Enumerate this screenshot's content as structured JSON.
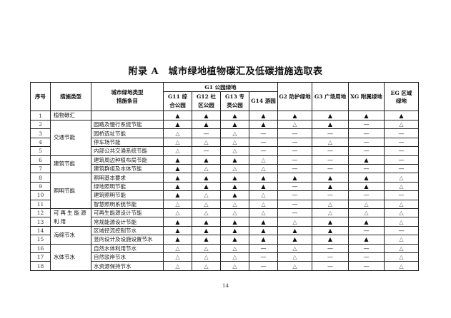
{
  "title": "附录 A　城市绿地植物碳汇及低碳措施选取表",
  "page_number": "14",
  "legend_symbols": {
    "F": "▲",
    "O": "△",
    "N": "—"
  },
  "headers": {
    "index": "序号",
    "type": "措施类型",
    "item": "城市绿地类型\n措施条目",
    "group_g1": "G1 公园绿地",
    "columns": [
      "G11 综合公园",
      "G12 社区公园",
      "G13 专类公园",
      "G14 游园",
      "G2 防护绿地",
      "G3 广场用地",
      "XG 附属绿地",
      "EG 区域绿地"
    ]
  },
  "types": [
    {
      "label": "植物碳汇",
      "rows": 1
    },
    {
      "label": "交通节能",
      "rows": 4
    },
    {
      "label": "建筑节能",
      "rows": 2
    },
    {
      "label": "照明节能",
      "rows": 4
    },
    {
      "label": "可再生能源利用",
      "rows": 2
    },
    {
      "label": "海绵节水",
      "rows": 2
    },
    {
      "label": "水体节水",
      "rows": 3
    }
  ],
  "rows": [
    {
      "no": "1",
      "item": "",
      "marks": "FFFFFFFF"
    },
    {
      "no": "2",
      "item": "园路及慢行系统节能",
      "marks": "FFFFOFNO"
    },
    {
      "no": "3",
      "item": "园桥选址节能",
      "marks": "ONONNNNN"
    },
    {
      "no": "4",
      "item": "停车场节能",
      "marks": "OOONNONN"
    },
    {
      "no": "5",
      "item": "内部公共交通系统节能",
      "marks": "ONONNNNN"
    },
    {
      "no": "6",
      "item": "建筑周边种植布局节能",
      "marks": "FFFONNFN"
    },
    {
      "no": "7",
      "item": "建筑群组及本体节能",
      "marks": "FOOONNNN"
    },
    {
      "no": "8",
      "item": "照明基本要求",
      "marks": "FFFFFFFO"
    },
    {
      "no": "9",
      "item": "绿地照明节能",
      "marks": "FFFFNFFO"
    },
    {
      "no": "10",
      "item": "建筑照明节能",
      "marks": "FOFONNNN"
    },
    {
      "no": "11",
      "item": "智慧照明系统节能",
      "marks": "OOOONOOO"
    },
    {
      "no": "12",
      "item": "可再生能源设计节能",
      "marks": "OOOONOOO"
    },
    {
      "no": "13",
      "item": "常规能源设计节能",
      "marks": "FFFFOFFO"
    },
    {
      "no": "14",
      "item": "区域径流控制节水",
      "marks": "FFFFFFNN"
    },
    {
      "no": "15",
      "item": "竖向设计及设施设置节水",
      "marks": "FFFFFFFO"
    },
    {
      "no": "16",
      "item": "自然水体利用节水",
      "marks": "OOONONNO"
    },
    {
      "no": "17",
      "item": "自然驳岸节水",
      "marks": "OOONONNO"
    },
    {
      "no": "18",
      "item": "水资源保持节水",
      "marks": "OOONONNO"
    }
  ]
}
